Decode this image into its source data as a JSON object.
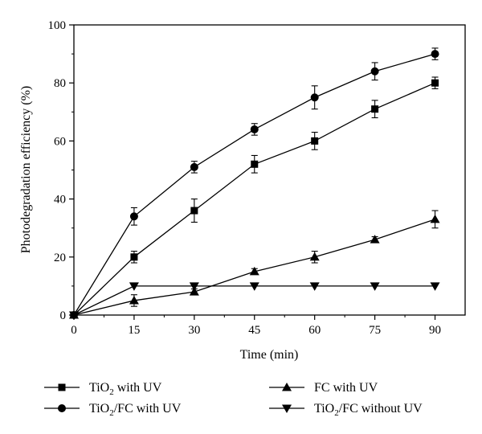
{
  "chart_data": {
    "type": "line",
    "xlabel": "Time (min)",
    "ylabel": "Photodegradation efficiency (%)",
    "xlim": [
      0,
      97.5
    ],
    "ylim": [
      0,
      100
    ],
    "xticks": [
      0,
      15,
      30,
      45,
      60,
      75,
      90
    ],
    "yticks": [
      0,
      20,
      40,
      60,
      80,
      100
    ],
    "grid": false,
    "legend_placement": "bottom",
    "x": [
      0,
      15,
      30,
      45,
      60,
      75,
      90
    ],
    "series": [
      {
        "name": "TiO2 with UV",
        "name_base": "TiO",
        "name_sub": "2",
        "name_rest": " with UV",
        "marker": "square",
        "values": [
          0,
          20,
          36,
          52,
          60,
          71,
          80
        ],
        "errors": [
          0,
          2,
          4,
          3,
          3,
          3,
          2
        ]
      },
      {
        "name": "TiO2/FC with UV",
        "name_base": "TiO",
        "name_sub": "2",
        "name_rest": "/FC with UV",
        "marker": "circle",
        "values": [
          0,
          34,
          51,
          64,
          75,
          84,
          90
        ],
        "errors": [
          0,
          3,
          2,
          2,
          4,
          3,
          2
        ]
      },
      {
        "name": "FC with UV",
        "name_base": "FC with UV",
        "name_sub": "",
        "name_rest": "",
        "marker": "triangle-up",
        "values": [
          0,
          5,
          8,
          15,
          20,
          26,
          33
        ],
        "errors": [
          0,
          2,
          1,
          1,
          2,
          1,
          3
        ]
      },
      {
        "name": "TiO2/FC without UV",
        "name_base": "TiO",
        "name_sub": "2",
        "name_rest": "/FC without UV",
        "marker": "triangle-down",
        "values": [
          0,
          10,
          10,
          10,
          10,
          10,
          10
        ],
        "errors": [
          0,
          0,
          0,
          0,
          0,
          0,
          0
        ]
      }
    ]
  }
}
